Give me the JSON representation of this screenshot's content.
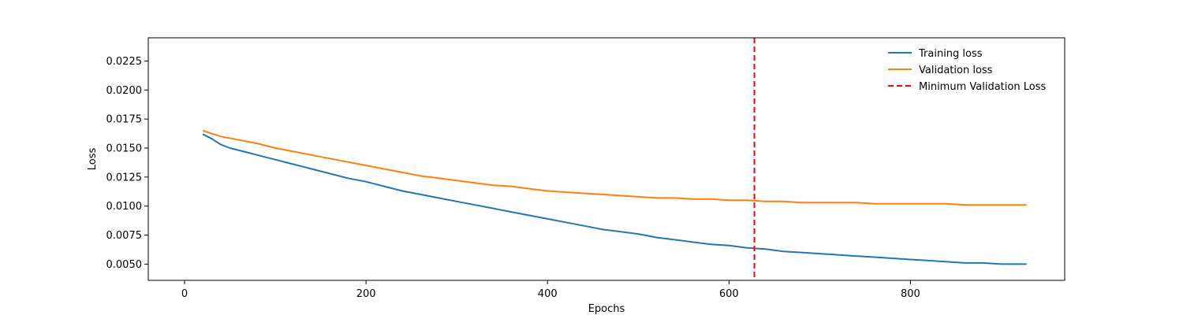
{
  "chart_data": {
    "type": "line",
    "title": "",
    "xlabel": "Epochs",
    "ylabel": "Loss",
    "xlim": [
      -40,
      970
    ],
    "ylim": [
      0.0036,
      0.0245
    ],
    "xticks": [
      0,
      200,
      400,
      600,
      800
    ],
    "xtick_labels": [
      "0",
      "200",
      "400",
      "600",
      "800"
    ],
    "yticks": [
      0.005,
      0.0075,
      0.01,
      0.0125,
      0.015,
      0.0175,
      0.02,
      0.0225
    ],
    "ytick_labels": [
      "0.0050",
      "0.0075",
      "0.0100",
      "0.0125",
      "0.0150",
      "0.0175",
      "0.0200",
      "0.0225"
    ],
    "grid": false,
    "legend": {
      "placement": "top-right",
      "entries": [
        "Training loss",
        "Validation loss",
        "Minimum Validation Loss"
      ]
    },
    "series": [
      {
        "name": "Training loss",
        "color": "#1f77b4",
        "style": "solid",
        "x": [
          20,
          30,
          40,
          50,
          60,
          70,
          80,
          90,
          100,
          120,
          140,
          160,
          180,
          200,
          220,
          240,
          260,
          280,
          300,
          320,
          340,
          360,
          380,
          400,
          420,
          440,
          460,
          480,
          500,
          520,
          540,
          560,
          580,
          600,
          620,
          640,
          660,
          680,
          700,
          720,
          740,
          760,
          780,
          800,
          820,
          840,
          860,
          880,
          900,
          920,
          928
        ],
        "y": [
          0.0162,
          0.0158,
          0.0153,
          0.015,
          0.0148,
          0.0146,
          0.0144,
          0.0142,
          0.014,
          0.0136,
          0.0132,
          0.0128,
          0.0124,
          0.0121,
          0.0117,
          0.0113,
          0.011,
          0.0107,
          0.0104,
          0.0101,
          0.0098,
          0.0095,
          0.0092,
          0.0089,
          0.0086,
          0.0083,
          0.008,
          0.0078,
          0.0076,
          0.0073,
          0.0071,
          0.0069,
          0.0067,
          0.0066,
          0.0064,
          0.0063,
          0.0061,
          0.006,
          0.0059,
          0.0058,
          0.0057,
          0.0056,
          0.0055,
          0.0054,
          0.0053,
          0.0052,
          0.0051,
          0.0051,
          0.005,
          0.005,
          0.005
        ]
      },
      {
        "name": "Validation loss",
        "color": "#ff7f0e",
        "style": "solid",
        "x": [
          20,
          40,
          60,
          80,
          100,
          120,
          140,
          160,
          180,
          200,
          220,
          240,
          260,
          280,
          300,
          320,
          340,
          360,
          380,
          400,
          420,
          440,
          460,
          480,
          500,
          520,
          540,
          560,
          580,
          600,
          620,
          640,
          660,
          680,
          700,
          720,
          740,
          760,
          780,
          800,
          820,
          840,
          860,
          880,
          900,
          920,
          928
        ],
        "y": [
          0.0165,
          0.016,
          0.0157,
          0.0154,
          0.015,
          0.0147,
          0.0144,
          0.0141,
          0.0138,
          0.0135,
          0.0132,
          0.0129,
          0.0126,
          0.0124,
          0.0122,
          0.012,
          0.0118,
          0.0117,
          0.0115,
          0.0113,
          0.0112,
          0.0111,
          0.011,
          0.0109,
          0.0108,
          0.0107,
          0.0107,
          0.0106,
          0.0106,
          0.0105,
          0.0105,
          0.0104,
          0.0104,
          0.0103,
          0.0103,
          0.0103,
          0.0103,
          0.0102,
          0.0102,
          0.0102,
          0.0102,
          0.0102,
          0.0101,
          0.0101,
          0.0101,
          0.0101,
          0.0101
        ]
      }
    ],
    "vlines": [
      {
        "name": "Minimum Validation Loss",
        "x": 628,
        "color": "#ff0000",
        "style": "dashed"
      }
    ]
  }
}
